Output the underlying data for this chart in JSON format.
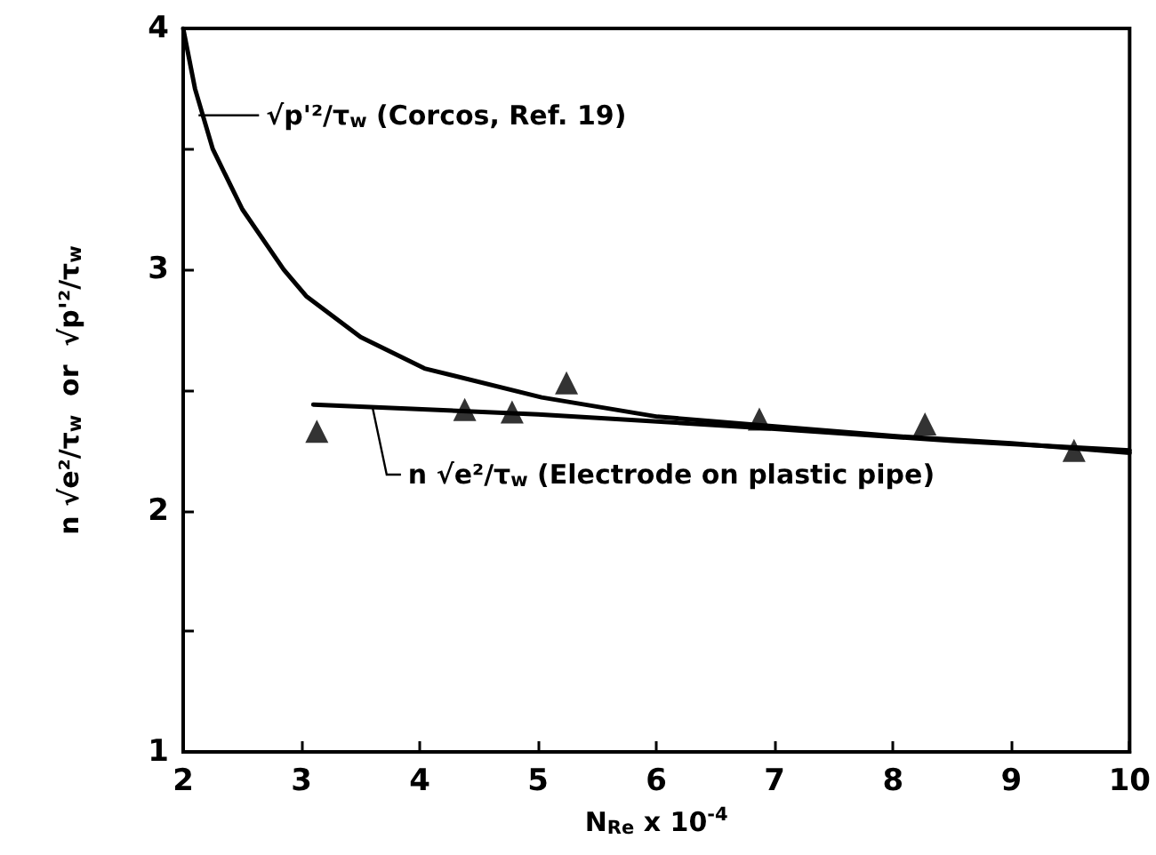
{
  "chart_data": {
    "type": "line",
    "xlabel": "N$_{Re}$ x 10$^{-4}$",
    "ylabel": "n √e²/τ$_{w}$  or  √p'²/τ$_{w}$",
    "xlim": [
      2,
      10
    ],
    "xticks": [
      2,
      3,
      4,
      5,
      6,
      7,
      8,
      9,
      10
    ],
    "ylim": [
      1,
      4
    ],
    "yticks": [
      1,
      {
        "value": 1.5,
        "label": null
      },
      2,
      {
        "value": 2.5,
        "label": null
      },
      3,
      {
        "value": 3.5,
        "label": null
      },
      4
    ],
    "series": [
      {
        "color": "#000000",
        "marker": "none",
        "line_style": "solid",
        "x": [
          2,
          2.1,
          2.25,
          2.5,
          2.85,
          3.04,
          3.5,
          4.04,
          5.03,
          6.01,
          7,
          8,
          9,
          10
        ],
        "values": [
          4,
          3.75,
          3.5,
          3.25,
          3.0,
          2.89,
          2.72,
          2.59,
          2.47,
          2.39,
          2.35,
          2.31,
          2.28,
          2.24
        ]
      },
      {
        "color": "#000000",
        "marker": "none",
        "line_style": "solid",
        "x": [
          3.1,
          5,
          7,
          8.5,
          10
        ],
        "values": [
          2.44,
          2.4,
          2.34,
          2.29,
          2.25
        ]
      },
      {
        "type": "scatter",
        "color": "#000000",
        "marker": "triangle",
        "x": [
          3.13,
          4.38,
          4.78,
          5.24,
          6.87,
          8.27,
          9.53
        ],
        "values": [
          2.33,
          2.42,
          2.41,
          2.53,
          2.38,
          2.36,
          2.25
        ]
      }
    ],
    "annotations": [
      {
        "text": "√p'²/τ$_{w}$ (Corcos, Ref. 19)",
        "x": 2.13,
        "y": 3.64
      },
      {
        "text": "n √e²/τ$_{w}$ (Electrode on plastic pipe)",
        "x": 3.6,
        "y": 2.43
      }
    ]
  }
}
